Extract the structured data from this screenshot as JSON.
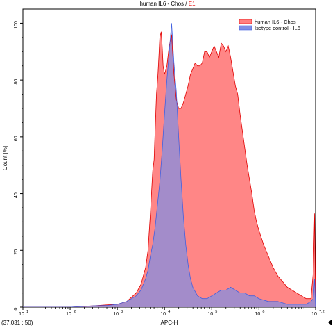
{
  "header": {
    "sample_name": "human IL6 - Chos",
    "separator": " / ",
    "gate_name": "E1"
  },
  "status": {
    "cursor_readout": "(37,031 : 50)"
  },
  "colors": {
    "series_primary": "#ff8080",
    "series_primary_line": "#e00000",
    "series_secondary": "#7f8fe5",
    "series_secondary_line": "#4060e0",
    "overlap": "#9b7fbf"
  },
  "chart_data": {
    "type": "area",
    "title": "human IL6 - Chos / E1",
    "xlabel": "APC-H",
    "ylabel": "Count [%]",
    "xscale": "log",
    "xlim": [
      10,
      15848932
    ],
    "ylim": [
      0,
      105
    ],
    "xticks": [
      {
        "value": 10,
        "base": "10",
        "exp": "1"
      },
      {
        "value": 100,
        "base": "10",
        "exp": "2"
      },
      {
        "value": 1000,
        "base": "10",
        "exp": "3"
      },
      {
        "value": 10000,
        "base": "10",
        "exp": "4"
      },
      {
        "value": 100000,
        "base": "10",
        "exp": "5"
      },
      {
        "value": 1000000,
        "base": "10",
        "exp": "6"
      },
      {
        "value": 15848932,
        "base": "10",
        "exp": "7.2"
      }
    ],
    "yticks": [
      0,
      20,
      40,
      60,
      80,
      100
    ],
    "legend_position": "top-right",
    "series": [
      {
        "name": "human IL6 - Chos",
        "color": "#ff8080",
        "points": [
          [
            1.0,
            0
          ],
          [
            2.0,
            0
          ],
          [
            2.5,
            0.5
          ],
          [
            2.8,
            0.8
          ],
          [
            3.0,
            1
          ],
          [
            3.2,
            2
          ],
          [
            3.4,
            5
          ],
          [
            3.5,
            8
          ],
          [
            3.6,
            14
          ],
          [
            3.65,
            20
          ],
          [
            3.7,
            33
          ],
          [
            3.75,
            48
          ],
          [
            3.78,
            52
          ],
          [
            3.8,
            62
          ],
          [
            3.83,
            75
          ],
          [
            3.86,
            82
          ],
          [
            3.88,
            88
          ],
          [
            3.9,
            95
          ],
          [
            3.93,
            97
          ],
          [
            3.95,
            92
          ],
          [
            3.97,
            85
          ],
          [
            4.0,
            82
          ],
          [
            4.05,
            85
          ],
          [
            4.1,
            92
          ],
          [
            4.15,
            96
          ],
          [
            4.2,
            82
          ],
          [
            4.25,
            73
          ],
          [
            4.3,
            70
          ],
          [
            4.35,
            70
          ],
          [
            4.4,
            72
          ],
          [
            4.45,
            75
          ],
          [
            4.5,
            78
          ],
          [
            4.55,
            82
          ],
          [
            4.6,
            84
          ],
          [
            4.65,
            86
          ],
          [
            4.7,
            85
          ],
          [
            4.75,
            85
          ],
          [
            4.8,
            86
          ],
          [
            4.85,
            90
          ],
          [
            4.9,
            90
          ],
          [
            4.95,
            88
          ],
          [
            5.0,
            90
          ],
          [
            5.05,
            92
          ],
          [
            5.1,
            90
          ],
          [
            5.15,
            88
          ],
          [
            5.2,
            93
          ],
          [
            5.25,
            92
          ],
          [
            5.3,
            90
          ],
          [
            5.35,
            92
          ],
          [
            5.4,
            88
          ],
          [
            5.45,
            83
          ],
          [
            5.5,
            78
          ],
          [
            5.55,
            75
          ],
          [
            5.6,
            68
          ],
          [
            5.65,
            62
          ],
          [
            5.7,
            56
          ],
          [
            5.75,
            50
          ],
          [
            5.8,
            45
          ],
          [
            5.85,
            40
          ],
          [
            5.9,
            34
          ],
          [
            5.95,
            30
          ],
          [
            6.0,
            27
          ],
          [
            6.1,
            22
          ],
          [
            6.2,
            18
          ],
          [
            6.3,
            14
          ],
          [
            6.4,
            11
          ],
          [
            6.5,
            9
          ],
          [
            6.6,
            7
          ],
          [
            6.7,
            6
          ],
          [
            6.8,
            5
          ],
          [
            6.9,
            4
          ],
          [
            7.0,
            3
          ],
          [
            7.1,
            3
          ],
          [
            7.15,
            12
          ],
          [
            7.18,
            33
          ],
          [
            7.2,
            0
          ]
        ]
      },
      {
        "name": "Isotype control - IL6",
        "color": "#7f8fe5",
        "points": [
          [
            1.0,
            0
          ],
          [
            2.0,
            0
          ],
          [
            2.5,
            0.5
          ],
          [
            2.8,
            0.6
          ],
          [
            3.0,
            1
          ],
          [
            3.2,
            2
          ],
          [
            3.4,
            4
          ],
          [
            3.5,
            6
          ],
          [
            3.6,
            10
          ],
          [
            3.65,
            13
          ],
          [
            3.7,
            18
          ],
          [
            3.75,
            22
          ],
          [
            3.8,
            28
          ],
          [
            3.85,
            36
          ],
          [
            3.9,
            44
          ],
          [
            3.95,
            55
          ],
          [
            4.0,
            68
          ],
          [
            4.05,
            80
          ],
          [
            4.1,
            90
          ],
          [
            4.15,
            100
          ],
          [
            4.2,
            86
          ],
          [
            4.25,
            76
          ],
          [
            4.3,
            60
          ],
          [
            4.35,
            45
          ],
          [
            4.4,
            32
          ],
          [
            4.45,
            22
          ],
          [
            4.5,
            15
          ],
          [
            4.55,
            10
          ],
          [
            4.6,
            7
          ],
          [
            4.7,
            4
          ],
          [
            4.8,
            3
          ],
          [
            4.9,
            3
          ],
          [
            5.0,
            4
          ],
          [
            5.1,
            5
          ],
          [
            5.2,
            6
          ],
          [
            5.3,
            6
          ],
          [
            5.4,
            7
          ],
          [
            5.5,
            6
          ],
          [
            5.6,
            5
          ],
          [
            5.7,
            5
          ],
          [
            5.8,
            4
          ],
          [
            5.9,
            4
          ],
          [
            6.0,
            3
          ],
          [
            6.2,
            2
          ],
          [
            6.4,
            2
          ],
          [
            6.6,
            1
          ],
          [
            6.8,
            1
          ],
          [
            7.0,
            1
          ],
          [
            7.1,
            2
          ],
          [
            7.15,
            3
          ],
          [
            7.18,
            10
          ],
          [
            7.2,
            0
          ]
        ]
      }
    ]
  }
}
